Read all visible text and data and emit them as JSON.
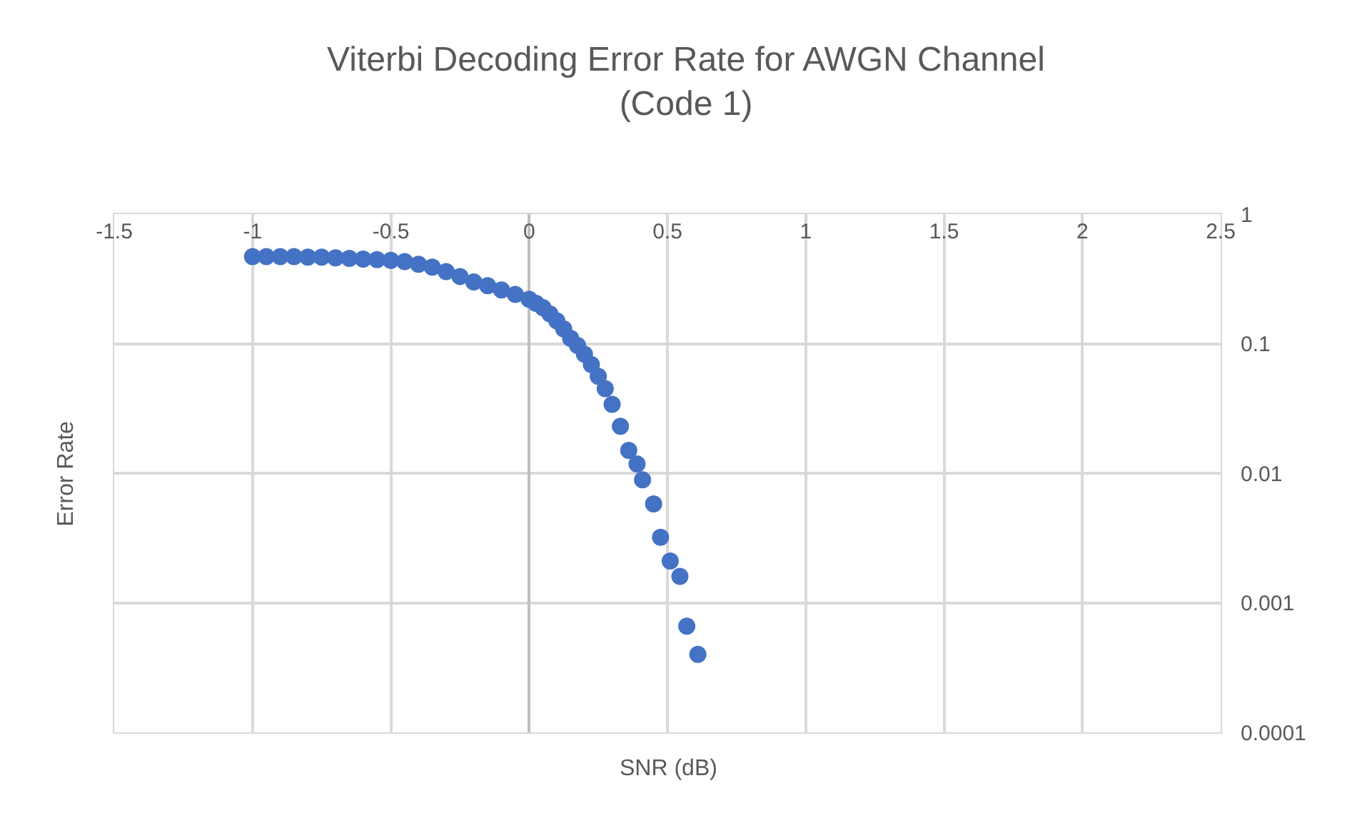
{
  "chart_data": {
    "type": "scatter",
    "title": "Viterbi Decoding Error Rate for AWGN Channel\n(Code 1)",
    "xlabel": "SNR (dB)",
    "ylabel": "Error Rate",
    "x": [
      -1.0,
      -0.95,
      -0.9,
      -0.85,
      -0.8,
      -0.75,
      -0.7,
      -0.65,
      -0.6,
      -0.55,
      -0.5,
      -0.45,
      -0.4,
      -0.35,
      -0.3,
      -0.25,
      -0.2,
      -0.15,
      -0.1,
      -0.05,
      0.0,
      0.025,
      0.05,
      0.075,
      0.1,
      0.125,
      0.15,
      0.175,
      0.2,
      0.225,
      0.25,
      0.275,
      0.3,
      0.33,
      0.36,
      0.39,
      0.41,
      0.45,
      0.475,
      0.51,
      0.545,
      0.57,
      0.61
    ],
    "series": [
      {
        "color": "#4472c4",
        "values": [
          0.47,
          0.47,
          0.47,
          0.47,
          0.465,
          0.465,
          0.46,
          0.455,
          0.45,
          0.445,
          0.44,
          0.43,
          0.41,
          0.39,
          0.36,
          0.33,
          0.3,
          0.28,
          0.26,
          0.24,
          0.22,
          0.205,
          0.19,
          0.17,
          0.15,
          0.13,
          0.11,
          0.097,
          0.083,
          0.069,
          0.056,
          0.045,
          0.034,
          0.023,
          0.015,
          0.0118,
          0.0089,
          0.0058,
          0.0032,
          0.0021,
          0.0016,
          0.00066,
          0.0004
        ]
      }
    ],
    "xlim": [
      -1.5,
      2.5
    ],
    "xticks": [
      -1.5,
      -1,
      -0.5,
      0,
      0.5,
      1,
      1.5,
      2,
      2.5
    ],
    "ylim": [
      0.0001,
      1
    ],
    "yticks": [
      1,
      0.1,
      0.01,
      0.001,
      0.0001
    ],
    "log": "y",
    "grid": true,
    "legend": false,
    "marker": "circle"
  }
}
